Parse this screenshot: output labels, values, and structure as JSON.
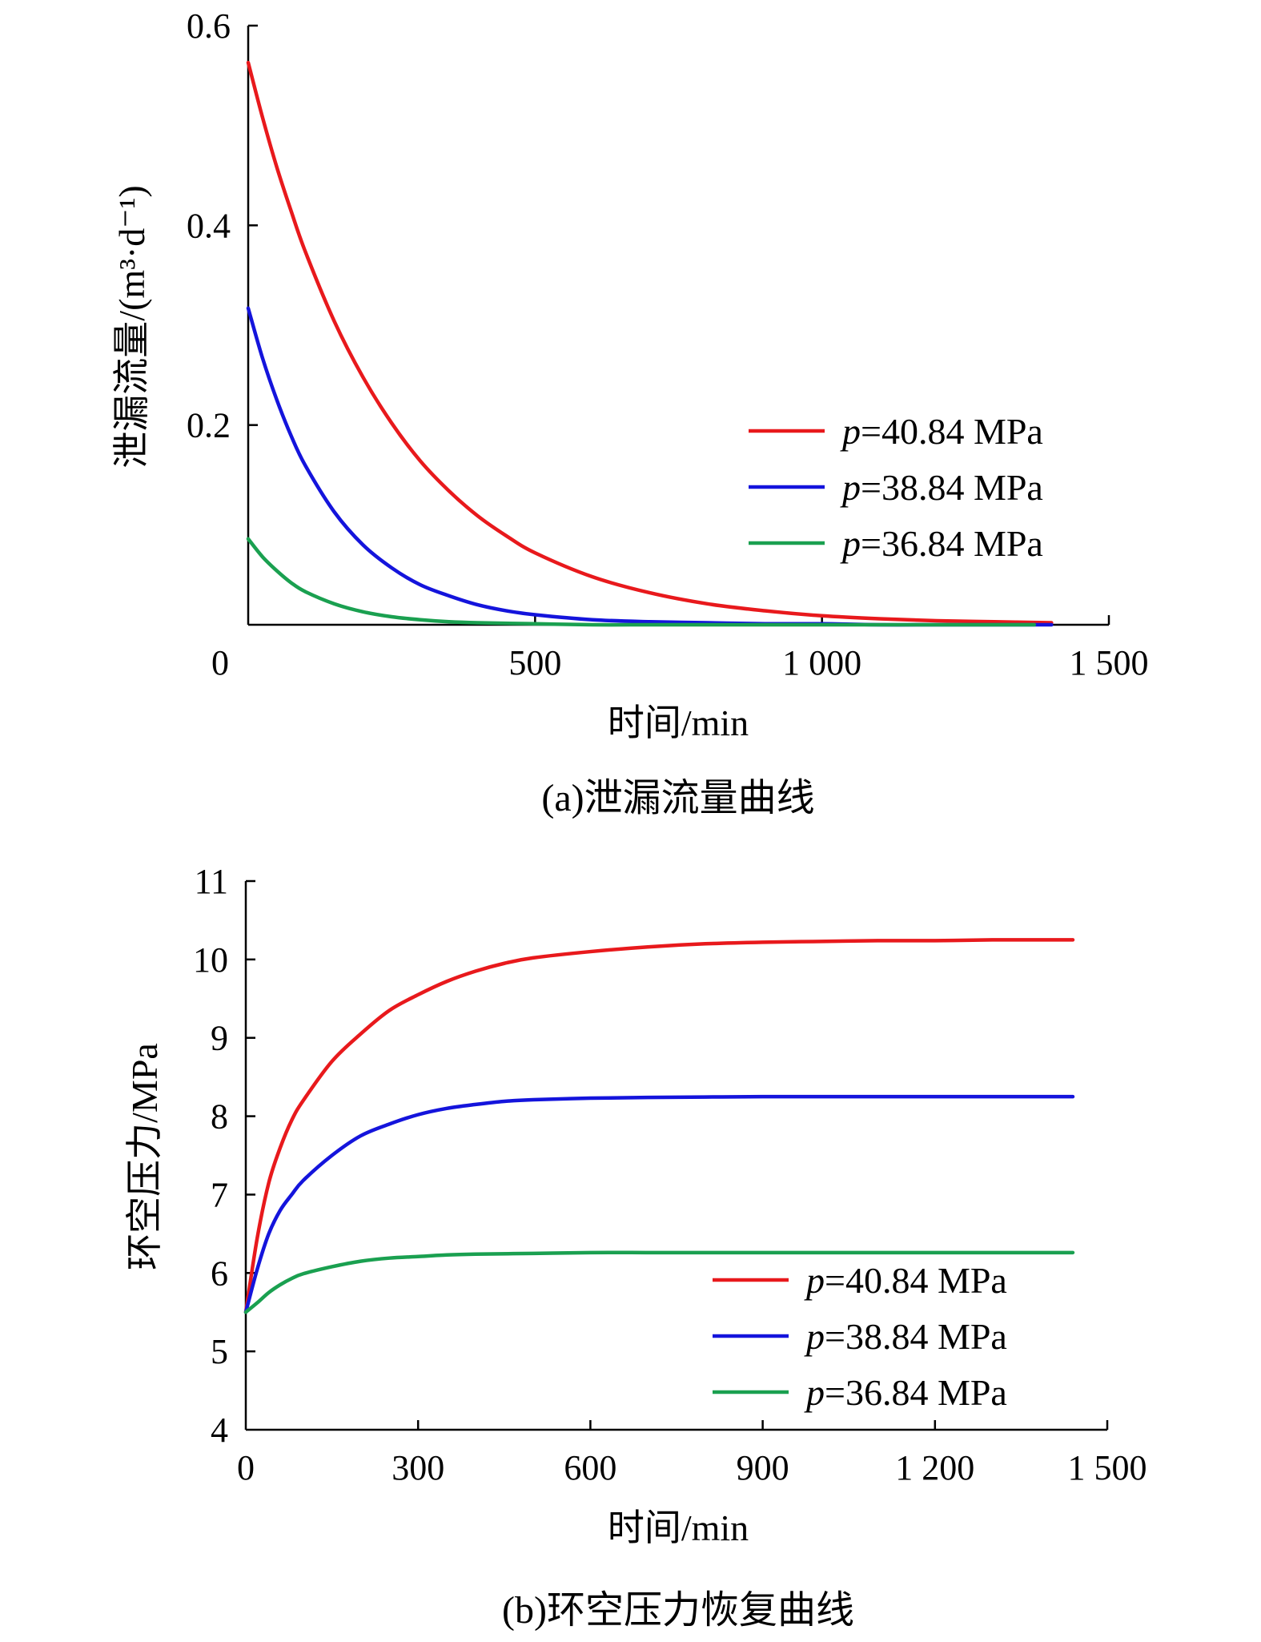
{
  "chart_data": [
    {
      "type": "line",
      "caption": "(a)泄漏流量曲线",
      "xlabel": "时间/min",
      "ylabel": "泄漏流量/(m³·d⁻¹)",
      "xlim": [
        0,
        1500
      ],
      "ylim": [
        0,
        0.6
      ],
      "xticks": [
        0,
        500,
        1000,
        1500
      ],
      "xtick_labels": [
        "0",
        "500",
        "1 000",
        "1 500"
      ],
      "yticks": [
        0.2,
        0.4,
        0.6
      ],
      "ytick_labels": [
        "0.2",
        "0.4",
        "0.6"
      ],
      "legend_position": "right",
      "series": [
        {
          "name": "p=40.84 MPa",
          "color": "#e8191c",
          "x": [
            0,
            25,
            50,
            75,
            100,
            150,
            200,
            250,
            300,
            350,
            400,
            450,
            500,
            600,
            700,
            800,
            900,
            1000,
            1100,
            1200,
            1300,
            1400
          ],
          "y": [
            0.563,
            0.508,
            0.458,
            0.414,
            0.373,
            0.304,
            0.248,
            0.202,
            0.164,
            0.134,
            0.109,
            0.089,
            0.072,
            0.048,
            0.032,
            0.021,
            0.014,
            0.009,
            0.006,
            0.004,
            0.003,
            0.002
          ]
        },
        {
          "name": "p=38.84 MPa",
          "color": "#1414dc",
          "x": [
            0,
            25,
            50,
            75,
            100,
            150,
            200,
            250,
            300,
            350,
            400,
            450,
            500,
            600,
            700,
            800,
            900,
            1000,
            1100,
            1200,
            1300,
            1400
          ],
          "y": [
            0.317,
            0.267,
            0.225,
            0.189,
            0.159,
            0.113,
            0.08,
            0.057,
            0.04,
            0.029,
            0.02,
            0.014,
            0.01,
            0.005,
            0.003,
            0.002,
            0.001,
            0.001,
            0.0,
            0.0,
            0.0,
            0.0
          ]
        },
        {
          "name": "p=36.84 MPa",
          "color": "#1aa050",
          "x": [
            0,
            25,
            50,
            75,
            100,
            150,
            200,
            250,
            300,
            350,
            400,
            500,
            600,
            700,
            800,
            900,
            1000,
            1100,
            1200,
            1300,
            1370
          ],
          "y": [
            0.086,
            0.068,
            0.054,
            0.042,
            0.033,
            0.021,
            0.013,
            0.008,
            0.005,
            0.003,
            0.002,
            0.001,
            0.0,
            0.0,
            0.0,
            0.0,
            0.0,
            0.0,
            0.0,
            0.0,
            0.0
          ]
        }
      ]
    },
    {
      "type": "line",
      "caption": "(b)环空压力恢复曲线",
      "xlabel": "时间/min",
      "ylabel": "环空压力/MPa",
      "xlim": [
        0,
        1500
      ],
      "ylim": [
        4,
        11
      ],
      "xticks": [
        0,
        300,
        600,
        900,
        1200,
        1500
      ],
      "xtick_labels": [
        "0",
        "300",
        "600",
        "900",
        "1 200",
        "1 500"
      ],
      "yticks": [
        4,
        5,
        6,
        7,
        8,
        9,
        10,
        11
      ],
      "ytick_labels": [
        "4",
        "5",
        "6",
        "7",
        "8",
        "9",
        "10",
        "11"
      ],
      "legend_position": "bottom-right",
      "series": [
        {
          "name": "p=40.84 MPa",
          "color": "#e8191c",
          "x": [
            0,
            20,
            40,
            60,
            80,
            100,
            150,
            200,
            250,
            300,
            350,
            400,
            450,
            500,
            600,
            700,
            800,
            900,
            1000,
            1100,
            1200,
            1300,
            1440
          ],
          "y": [
            5.5,
            6.45,
            7.15,
            7.6,
            7.95,
            8.2,
            8.7,
            9.05,
            9.35,
            9.55,
            9.72,
            9.85,
            9.95,
            10.02,
            10.1,
            10.16,
            10.2,
            10.22,
            10.23,
            10.24,
            10.24,
            10.25,
            10.25
          ]
        },
        {
          "name": "p=38.84 MPa",
          "color": "#1414dc",
          "x": [
            0,
            20,
            40,
            60,
            80,
            100,
            150,
            200,
            250,
            300,
            350,
            400,
            450,
            500,
            600,
            700,
            800,
            900,
            1000,
            1100,
            1200,
            1300,
            1440
          ],
          "y": [
            5.5,
            6.05,
            6.5,
            6.8,
            7.0,
            7.18,
            7.5,
            7.75,
            7.9,
            8.02,
            8.1,
            8.15,
            8.19,
            8.21,
            8.23,
            8.24,
            8.245,
            8.25,
            8.25,
            8.25,
            8.25,
            8.25,
            8.25
          ]
        },
        {
          "name": "p=36.84 MPa",
          "color": "#1aa050",
          "x": [
            0,
            20,
            40,
            60,
            80,
            100,
            150,
            200,
            250,
            300,
            350,
            400,
            500,
            600,
            700,
            800,
            900,
            1000,
            1100,
            1200,
            1300,
            1440
          ],
          "y": [
            5.5,
            5.62,
            5.75,
            5.85,
            5.93,
            5.99,
            6.08,
            6.15,
            6.19,
            6.21,
            6.23,
            6.24,
            6.25,
            6.26,
            6.26,
            6.26,
            6.26,
            6.26,
            6.26,
            6.26,
            6.26,
            6.26
          ]
        }
      ]
    }
  ]
}
